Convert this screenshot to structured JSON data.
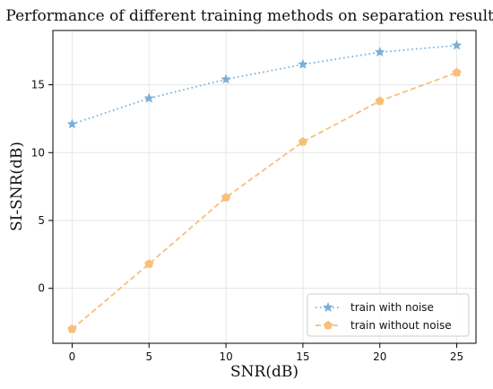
{
  "chart_data": {
    "type": "line",
    "title": "Performance of different training methods on separation results",
    "xlabel": "SNR(dB)",
    "ylabel": "SI-SNR(dB)",
    "x": [
      0,
      5,
      10,
      15,
      20,
      25
    ],
    "xlim": [
      -1.25,
      26.25
    ],
    "ylim": [
      -4.05,
      19.0
    ],
    "xticks": [
      0,
      5,
      10,
      15,
      20,
      25
    ],
    "yticks": [
      0,
      5,
      10,
      15
    ],
    "grid": true,
    "legend_position": "lower-right",
    "series": [
      {
        "name": "train with noise",
        "values": [
          12.1,
          14.0,
          15.4,
          16.5,
          17.4,
          17.9
        ],
        "color": "#7bafd6",
        "line_style": "dotted",
        "marker": "star"
      },
      {
        "name": "train without noise",
        "values": [
          -3.0,
          1.8,
          6.7,
          10.8,
          13.8,
          15.9
        ],
        "color": "#f8bf76",
        "line_style": "dashed",
        "marker": "pentagon"
      }
    ]
  }
}
